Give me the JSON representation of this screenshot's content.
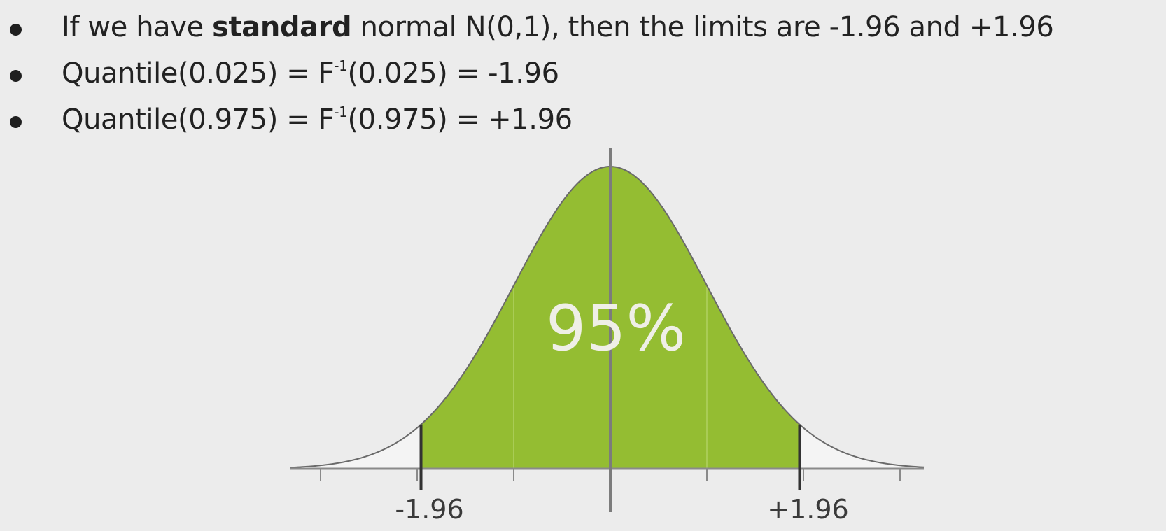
{
  "bullets": [
    {
      "pre": "If we have ",
      "bold": "standard",
      "post": " normal N(0,1), then the limits are -1.96 and +1.96"
    },
    {
      "pre": "Quantile(0.025) = F",
      "sup": "-1",
      "post": "(0.025) = -1.96"
    },
    {
      "pre": "Quantile(0.975) = F",
      "sup": "-1",
      "post": "(0.975) = +1.96"
    }
  ],
  "chart_data": {
    "type": "area",
    "distribution": "standard normal N(0,1)",
    "xlim": [
      -3,
      3
    ],
    "tick_values": [
      -3,
      -2,
      -1,
      0,
      1,
      2,
      3
    ],
    "shaded_interval": [
      -1.96,
      1.96
    ],
    "shaded_area_label": "95%",
    "limit_labels": [
      "-1.96",
      "+1.96"
    ],
    "colors": {
      "shaded": "#94bd32",
      "curve": "#6a6a6a",
      "axis": "#6a6a6a",
      "label": "#efefe6"
    }
  }
}
